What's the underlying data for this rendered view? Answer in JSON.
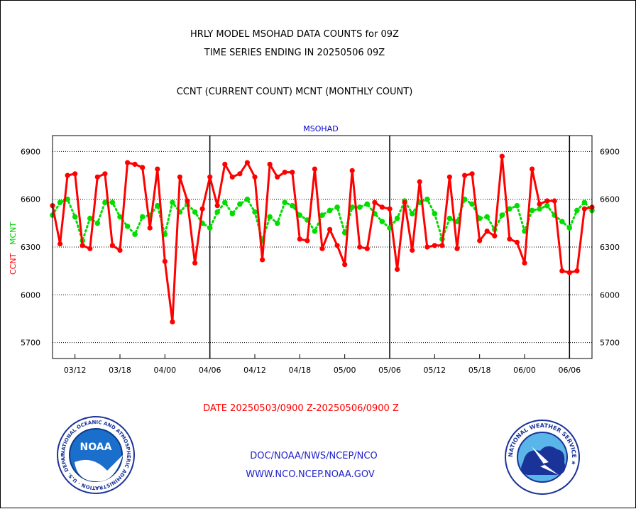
{
  "header": {
    "title_line1": "HRLY MODEL MSOHAD DATA COUNTS for 09Z",
    "title_line2": "TIME SERIES ENDING IN 20250506 09Z",
    "series_desc": "CCNT (CURRENT COUNT) MCNT (MONTHLY COUNT)"
  },
  "footer": {
    "date_range": "DATE 20250503/0900 Z-20250506/0900 Z",
    "link1": "DOC/NOAA/NWS/NCEP/NCO",
    "link2": "WWW.NCO.NCEP.NOAA.GOV"
  },
  "logos": {
    "noaa_text": "NOAA",
    "noaa_ring": "NATIONAL OCEANIC AND ATMOSPHERIC ADMINISTRATION · U.S. DEPARTMENT OF COMMERCE ·",
    "nws_ring": "NATIONAL WEATHER SERVICE ★"
  },
  "colors": {
    "ccnt": "#ff0000",
    "mcnt": "#00dd00",
    "plot_title": "#0000cc",
    "link": "#2222cc"
  },
  "chart_data": {
    "type": "line",
    "title": "MSOHAD",
    "ylabel_left": "CCNT",
    "ylabel_right": "MCNT",
    "ylim": [
      5600,
      7000
    ],
    "yticks": [
      5700,
      6000,
      6300,
      6600,
      6900
    ],
    "ytick_labels": [
      "5700",
      "6000",
      "6300",
      "6600",
      "6900"
    ],
    "xlim": [
      0,
      72
    ],
    "xtick_positions": [
      3,
      9,
      15,
      21,
      27,
      33,
      39,
      45,
      51,
      57,
      63,
      69
    ],
    "xtick_labels": [
      "03/12",
      "03/18",
      "04/00",
      "04/06",
      "04/12",
      "04/18",
      "05/00",
      "05/06",
      "05/12",
      "05/18",
      "06/00",
      "06/06"
    ],
    "day_boundaries": [
      21,
      45,
      69
    ],
    "grid": true,
    "series": [
      {
        "name": "CCNT",
        "x": [
          0,
          1,
          2,
          3,
          4,
          5,
          6,
          7,
          8,
          9,
          10,
          11,
          12,
          13,
          14,
          15,
          16,
          17,
          18,
          19,
          20,
          21,
          22,
          23,
          24,
          25,
          26,
          27,
          28,
          29,
          30,
          31,
          32,
          33,
          34,
          35,
          36,
          37,
          38,
          39,
          40,
          41,
          42,
          43,
          44,
          45,
          46,
          47,
          48,
          49,
          50,
          51,
          52,
          53,
          54,
          55,
          56,
          57,
          58,
          59,
          60,
          61,
          62,
          63,
          64,
          65,
          66,
          67,
          68,
          69,
          70,
          71,
          72
        ],
        "values": [
          6560,
          6320,
          6750,
          6760,
          6310,
          6290,
          6740,
          6760,
          6310,
          6280,
          6830,
          6820,
          6800,
          6420,
          6790,
          6210,
          5830,
          6740,
          6590,
          6200,
          6540,
          6740,
          6560,
          6820,
          6740,
          6760,
          6830,
          6740,
          6220,
          6820,
          6740,
          6770,
          6770,
          6350,
          6340,
          6790,
          6290,
          6410,
          6310,
          6190,
          6780,
          6300,
          6290,
          6580,
          6550,
          6540,
          6160,
          6580,
          6280,
          6710,
          6300,
          6310,
          6310,
          6740,
          6290,
          6750,
          6760,
          6340,
          6400,
          6370,
          6870,
          6350,
          6330,
          6200,
          6790,
          6570,
          6590,
          6590,
          6150,
          6140,
          6150,
          6540,
          6550
        ]
      },
      {
        "name": "MCNT",
        "x": [
          0,
          1,
          2,
          3,
          4,
          5,
          6,
          7,
          8,
          9,
          10,
          11,
          12,
          13,
          14,
          15,
          16,
          17,
          18,
          19,
          20,
          21,
          22,
          23,
          24,
          25,
          26,
          27,
          28,
          29,
          30,
          31,
          32,
          33,
          34,
          35,
          36,
          37,
          38,
          39,
          40,
          41,
          42,
          43,
          44,
          45,
          46,
          47,
          48,
          49,
          50,
          51,
          52,
          53,
          54,
          55,
          56,
          57,
          58,
          59,
          60,
          61,
          62,
          63,
          64,
          65,
          66,
          67,
          68,
          69,
          70,
          71,
          72
        ],
        "values": [
          6500,
          6580,
          6600,
          6490,
          6340,
          6480,
          6450,
          6580,
          6580,
          6490,
          6430,
          6380,
          6490,
          6500,
          6560,
          6380,
          6580,
          6520,
          6570,
          6520,
          6450,
          6420,
          6520,
          6580,
          6510,
          6570,
          6600,
          6520,
          6340,
          6490,
          6450,
          6580,
          6560,
          6500,
          6470,
          6400,
          6500,
          6530,
          6550,
          6390,
          6550,
          6550,
          6570,
          6510,
          6460,
          6420,
          6480,
          6590,
          6510,
          6580,
          6600,
          6510,
          6350,
          6480,
          6460,
          6600,
          6570,
          6480,
          6490,
          6410,
          6500,
          6540,
          6560,
          6400,
          6530,
          6540,
          6560,
          6500,
          6460,
          6420,
          6530,
          6580,
          6530
        ]
      }
    ]
  }
}
